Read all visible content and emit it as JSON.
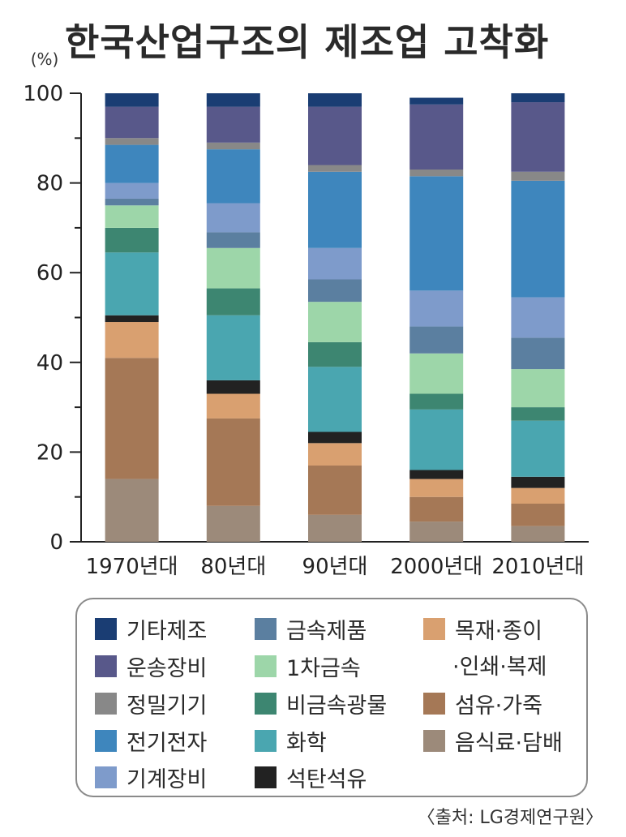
{
  "title": "한국산업구조의 제조업 고착화",
  "source": "〈출처: LG경제연구원〉",
  "chart_data": {
    "type": "bar",
    "stacked": true,
    "y_unit_label": "(%)",
    "ylim": [
      0,
      100
    ],
    "yticks": [
      "0",
      "20",
      "40",
      "60",
      "80",
      "100"
    ],
    "categories": [
      "1970년대",
      "80년대",
      "90년대",
      "2000년대",
      "2010년대"
    ],
    "series": [
      {
        "name": "음식료·담배",
        "color": "#9c8a7a",
        "values": [
          14,
          8,
          6,
          4.5,
          3.5
        ]
      },
      {
        "name": "섬유·가죽",
        "color": "#a57856",
        "values": [
          27,
          19.5,
          11,
          5.5,
          5
        ]
      },
      {
        "name": "목재·종이·인쇄·복제",
        "color": "#d9a070",
        "values": [
          8,
          5.5,
          5,
          4,
          3.5
        ]
      },
      {
        "name": "석탄석유",
        "color": "#222222",
        "values": [
          1.5,
          3,
          2.5,
          2,
          2.5
        ]
      },
      {
        "name": "화학",
        "color": "#4aa6b0",
        "values": [
          14,
          14.5,
          14.5,
          13.5,
          12.5
        ]
      },
      {
        "name": "비금속광물",
        "color": "#3d8671",
        "values": [
          5.5,
          6,
          5.5,
          3.5,
          3
        ]
      },
      {
        "name": "1차금속",
        "color": "#9dd6a9",
        "values": [
          5,
          9,
          9,
          9,
          8.5
        ]
      },
      {
        "name": "금속제품",
        "color": "#5b7fa0",
        "values": [
          1.5,
          3.5,
          5,
          6,
          7
        ]
      },
      {
        "name": "기계장비",
        "color": "#7e9bcb",
        "values": [
          3.5,
          6.5,
          7,
          8,
          9
        ]
      },
      {
        "name": "전기전자",
        "color": "#3e86bd",
        "values": [
          8.5,
          12,
          17,
          25.5,
          26
        ]
      },
      {
        "name": "정밀기기",
        "color": "#888888",
        "values": [
          1.5,
          1.5,
          1.5,
          1.5,
          2
        ]
      },
      {
        "name": "운송장비",
        "color": "#58588a",
        "values": [
          7,
          8,
          13,
          14.5,
          15.5
        ]
      },
      {
        "name": "기타제조",
        "color": "#1a3d73",
        "values": [
          3,
          3,
          3,
          1.5,
          2
        ]
      }
    ]
  },
  "legend": {
    "items": [
      {
        "label": "기타제조",
        "color": "#1a3d73"
      },
      {
        "label": "운송장비",
        "color": "#58588a"
      },
      {
        "label": "정밀기기",
        "color": "#888888"
      },
      {
        "label": "전기전자",
        "color": "#3e86bd"
      },
      {
        "label": "기계장비",
        "color": "#7e9bcb"
      },
      {
        "label": "금속제품",
        "color": "#5b7fa0"
      },
      {
        "label": "1차금속",
        "color": "#9dd6a9"
      },
      {
        "label": "비금속광물",
        "color": "#3d8671"
      },
      {
        "label": "화학",
        "color": "#4aa6b0"
      },
      {
        "label": "석탄석유",
        "color": "#222222"
      },
      {
        "label": "목재·종이",
        "label2": "·인쇄·복제",
        "color": "#d9a070"
      },
      {
        "label": "섬유·가죽",
        "color": "#a57856"
      },
      {
        "label": "음식료·담배",
        "color": "#9c8a7a"
      }
    ]
  }
}
